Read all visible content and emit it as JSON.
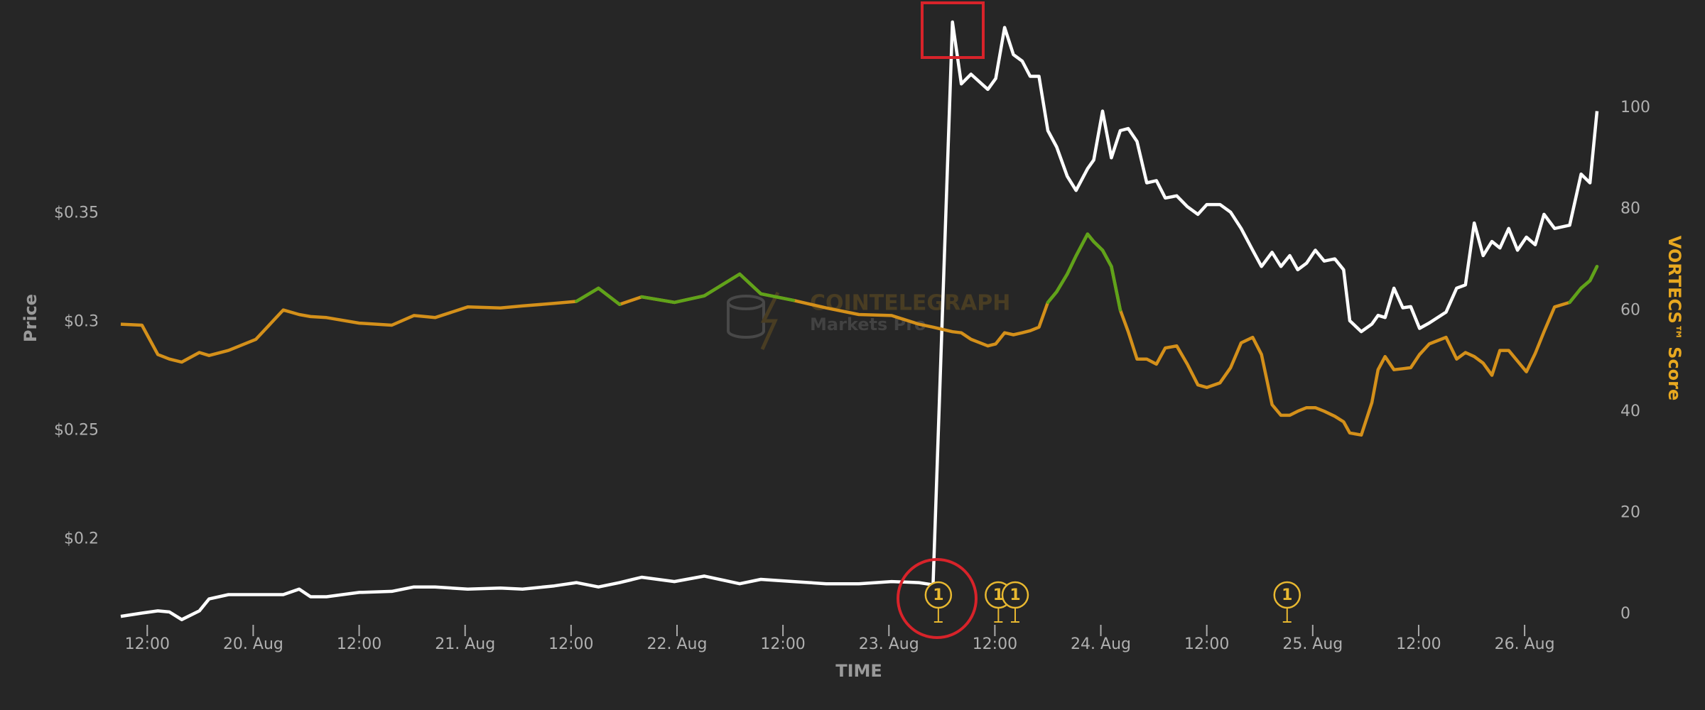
{
  "chart_data": {
    "type": "line",
    "x_label": "TIME",
    "y_label": "Price",
    "y2_label": "VORTECS™ Score",
    "watermark": {
      "brand": "COINTELEGRAPH",
      "product": "Markets Pro"
    },
    "background": "#262626",
    "x": [
      9.0,
      11.4,
      13.2,
      14.5,
      15.9,
      17.9,
      19.0,
      21.2,
      24.3,
      27.4,
      29.2,
      30.5,
      32.3,
      36.0,
      39.7,
      42.2,
      44.6,
      48.3,
      52.0,
      54.5,
      58.1,
      60.6,
      63.1,
      65.5,
      68.0,
      71.7,
      75.1,
      79.1,
      81.5,
      85.2,
      88.9,
      92.6,
      96.3,
      99.4,
      101.0,
      103.2,
      104.2,
      105.3,
      107.2,
      108.1,
      109.1,
      110.1,
      111.1,
      112.0,
      113.0,
      114.0,
      115.0,
      116.2,
      117.2,
      118.5,
      119.2,
      120.2,
      121.2,
      122.2,
      123.1,
      124.1,
      125.2,
      126.3,
      127.3,
      128.6,
      129.8,
      131.0,
      132.0,
      133.5,
      134.7,
      135.9,
      137.2,
      138.2,
      139.4,
      140.4,
      141.4,
      142.3,
      143.3,
      144.3,
      145.3,
      146.5,
      147.5,
      148.2,
      149.5,
      150.7,
      151.4,
      152.2,
      153.2,
      154.2,
      155.1,
      156.1,
      157.2,
      159.1,
      160.3,
      161.3,
      162.3,
      163.3,
      164.3,
      165.2,
      166.2,
      167.2,
      168.2,
      169.2,
      170.2,
      171.4,
      173.1,
      174.4,
      175.4,
      176.2
    ],
    "series": [
      {
        "color": "#ffffff",
        "axis": "y",
        "values": [
          0.1645,
          0.166,
          0.167,
          0.1665,
          0.163,
          0.167,
          0.1725,
          0.1745,
          0.1745,
          0.1745,
          0.177,
          0.1735,
          0.1735,
          0.1755,
          0.176,
          0.178,
          0.178,
          0.177,
          0.1775,
          0.177,
          0.1785,
          0.18,
          0.178,
          0.18,
          0.1825,
          0.1805,
          0.183,
          0.1795,
          0.1815,
          0.1805,
          0.1795,
          0.1795,
          0.1805,
          0.18,
          0.179,
          0.438,
          0.4095,
          0.414,
          0.407,
          0.412,
          0.4355,
          0.423,
          0.42,
          0.413,
          0.413,
          0.388,
          0.3805,
          0.367,
          0.3605,
          0.3705,
          0.3745,
          0.397,
          0.3755,
          0.388,
          0.389,
          0.383,
          0.364,
          0.365,
          0.357,
          0.358,
          0.353,
          0.3495,
          0.354,
          0.354,
          0.3505,
          0.343,
          0.333,
          0.3255,
          0.332,
          0.3255,
          0.3305,
          0.324,
          0.327,
          0.333,
          0.328,
          0.329,
          0.324,
          0.3005,
          0.2955,
          0.299,
          0.303,
          0.302,
          0.3155,
          0.3065,
          0.307,
          0.297,
          0.2995,
          0.3045,
          0.3155,
          0.317,
          0.3455,
          0.3305,
          0.337,
          0.334,
          0.343,
          0.333,
          0.339,
          0.3355,
          0.3495,
          0.343,
          0.3445,
          0.368,
          0.364,
          0.397
        ]
      },
      {
        "color": "#d4901a",
        "axis": "y2",
        "zone_color": "#5fa31a",
        "zone_above": 62,
        "values": [
          57.3,
          57.1,
          51.3,
          50.4,
          49.8,
          51.7,
          51.1,
          52.1,
          54.3,
          60.1,
          59.2,
          58.8,
          58.6,
          57.5,
          57.1,
          59.0,
          58.6,
          60.7,
          60.5,
          60.9,
          61.4,
          61.8,
          64.4,
          61.2,
          62.7,
          61.6,
          62.9,
          67.2,
          63.3,
          62.0,
          60.5,
          59.2,
          59.0,
          57.3,
          56.7,
          55.8,
          55.6,
          54.3,
          53.0,
          53.4,
          55.6,
          55.2,
          55.6,
          56.0,
          56.7,
          61.6,
          63.7,
          67.2,
          70.8,
          75.1,
          73.6,
          71.9,
          68.7,
          60.1,
          55.8,
          50.4,
          50.4,
          49.4,
          52.6,
          53.0,
          49.4,
          45.3,
          44.8,
          45.7,
          48.7,
          53.6,
          54.7,
          51.3,
          41.4,
          39.3,
          39.3,
          40.1,
          40.8,
          40.8,
          40.1,
          39.1,
          38.0,
          35.8,
          35.4,
          41.8,
          48.3,
          50.9,
          48.3,
          48.5,
          48.7,
          51.3,
          53.4,
          54.7,
          50.4,
          51.7,
          50.9,
          49.6,
          47.2,
          52.1,
          52.1,
          50.0,
          47.9,
          51.5,
          55.8,
          60.7,
          61.6,
          64.4,
          65.9,
          68.7
        ]
      }
    ],
    "xlim": [
      9.0,
      176.2
    ],
    "xticks": [
      {
        "value": 12,
        "label": "12:00"
      },
      {
        "value": 24,
        "label": "20. Aug"
      },
      {
        "value": 36,
        "label": "12:00"
      },
      {
        "value": 48,
        "label": "21. Aug"
      },
      {
        "value": 60,
        "label": "12:00"
      },
      {
        "value": 72,
        "label": "22. Aug"
      },
      {
        "value": 84,
        "label": "12:00"
      },
      {
        "value": 96,
        "label": "23. Aug"
      },
      {
        "value": 108,
        "label": "12:00"
      },
      {
        "value": 120,
        "label": "24. Aug"
      },
      {
        "value": 132,
        "label": "12:00"
      },
      {
        "value": 144,
        "label": "25. Aug"
      },
      {
        "value": 156,
        "label": "12:00"
      },
      {
        "value": 168,
        "label": "26. Aug"
      }
    ],
    "ylim": [
      0.1655,
      0.438
    ],
    "yticks": [
      {
        "value": 0.2,
        "label": "$0.2"
      },
      {
        "value": 0.25,
        "label": "$0.25"
      },
      {
        "value": 0.3,
        "label": "$0.3"
      },
      {
        "value": 0.35,
        "label": "$0.35"
      }
    ],
    "y2lim": [
      0,
      117
    ],
    "y2ticks": [
      0,
      20,
      40,
      60,
      80,
      100
    ],
    "annotations": [
      {
        "x": 101.6,
        "label": "1"
      },
      {
        "x": 108.4,
        "label": "1"
      },
      {
        "x": 110.3,
        "label": "1"
      },
      {
        "x": 141.1,
        "label": "1"
      }
    ]
  }
}
